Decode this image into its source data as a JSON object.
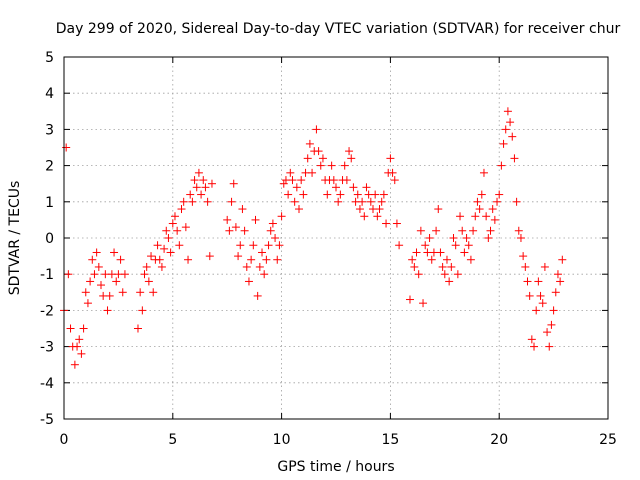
{
  "chart_data": {
    "type": "scatter",
    "title": "Day 299 of 2020, Sidereal Day-to-day VTEC variation (SDTVAR) for receiver chur",
    "xlabel": "GPS time / hours",
    "ylabel": "SDTVAR / TECUs",
    "xlim": [
      0,
      25
    ],
    "ylim": [
      -5,
      5
    ],
    "xticks": [
      0,
      5,
      10,
      15,
      20,
      25
    ],
    "yticks": [
      -5,
      -4,
      -3,
      -2,
      -1,
      0,
      1,
      2,
      3,
      4,
      5
    ],
    "grid": true,
    "marker": "+",
    "color": "#ff0000",
    "series": [
      {
        "name": "SDTVAR",
        "x": [
          0.0,
          0.1,
          0.2,
          0.3,
          0.4,
          0.5,
          0.6,
          0.7,
          0.8,
          0.9,
          1.0,
          1.1,
          1.2,
          1.3,
          1.4,
          1.5,
          1.6,
          1.7,
          1.8,
          1.9,
          2.0,
          2.1,
          2.2,
          2.3,
          2.4,
          2.5,
          2.6,
          2.7,
          2.8,
          3.4,
          3.5,
          3.6,
          3.7,
          3.8,
          3.9,
          4.0,
          4.1,
          4.2,
          4.3,
          4.4,
          4.5,
          4.6,
          4.7,
          4.8,
          4.9,
          5.0,
          5.1,
          5.2,
          5.3,
          5.4,
          5.5,
          5.6,
          5.7,
          5.8,
          5.9,
          6.0,
          6.1,
          6.2,
          6.3,
          6.4,
          6.5,
          6.6,
          6.7,
          6.8,
          7.5,
          7.6,
          7.7,
          7.8,
          7.9,
          8.0,
          8.1,
          8.2,
          8.3,
          8.4,
          8.5,
          8.6,
          8.7,
          8.8,
          8.9,
          9.0,
          9.1,
          9.2,
          9.3,
          9.4,
          9.5,
          9.6,
          9.7,
          9.8,
          9.9,
          10.0,
          10.1,
          10.2,
          10.3,
          10.4,
          10.5,
          10.6,
          10.7,
          10.8,
          10.9,
          11.0,
          11.1,
          11.2,
          11.3,
          11.4,
          11.5,
          11.6,
          11.7,
          11.8,
          11.9,
          12.0,
          12.1,
          12.2,
          12.3,
          12.4,
          12.5,
          12.6,
          12.7,
          12.8,
          12.9,
          13.0,
          13.1,
          13.2,
          13.3,
          13.4,
          13.5,
          13.6,
          13.7,
          13.8,
          13.9,
          14.0,
          14.1,
          14.2,
          14.3,
          14.4,
          14.5,
          14.6,
          14.7,
          14.8,
          14.9,
          15.0,
          15.1,
          15.2,
          15.3,
          15.4,
          15.9,
          16.0,
          16.1,
          16.2,
          16.3,
          16.4,
          16.5,
          16.6,
          16.7,
          16.8,
          16.9,
          17.0,
          17.1,
          17.2,
          17.3,
          17.4,
          17.5,
          17.6,
          17.7,
          17.8,
          17.9,
          18.0,
          18.1,
          18.2,
          18.3,
          18.4,
          18.5,
          18.6,
          18.7,
          18.8,
          18.9,
          19.0,
          19.1,
          19.2,
          19.3,
          19.4,
          19.5,
          19.6,
          19.7,
          19.8,
          19.9,
          20.0,
          20.1,
          20.2,
          20.3,
          20.4,
          20.5,
          20.6,
          20.7,
          20.8,
          20.9,
          21.0,
          21.1,
          21.2,
          21.3,
          21.4,
          21.5,
          21.6,
          21.7,
          21.8,
          21.9,
          22.0,
          22.1,
          22.2,
          22.3,
          22.4,
          22.5,
          22.6,
          22.7,
          22.8,
          22.9
        ],
        "y": [
          -2.0,
          2.5,
          -1.0,
          -2.5,
          -3.0,
          -3.5,
          -3.0,
          -2.8,
          -3.2,
          -2.5,
          -1.5,
          -1.8,
          -1.2,
          -0.6,
          -1.0,
          -0.4,
          -0.8,
          -1.3,
          -1.6,
          -1.0,
          -2.0,
          -1.6,
          -1.0,
          -0.4,
          -1.2,
          -1.0,
          -0.6,
          -1.5,
          -1.0,
          -2.5,
          -1.5,
          -2.0,
          -1.0,
          -0.8,
          -1.2,
          -0.5,
          -1.5,
          -0.6,
          -0.2,
          -0.6,
          -0.8,
          -0.3,
          0.2,
          0.0,
          -0.4,
          0.4,
          0.6,
          0.2,
          -0.2,
          0.8,
          1.0,
          0.3,
          -0.6,
          1.2,
          1.0,
          1.6,
          1.4,
          1.8,
          1.2,
          1.6,
          1.4,
          1.0,
          -0.5,
          1.5,
          0.5,
          0.2,
          1.0,
          1.5,
          0.3,
          -0.5,
          -0.2,
          0.8,
          0.2,
          -0.8,
          -1.2,
          -0.6,
          -0.2,
          0.5,
          -1.6,
          -0.8,
          -0.4,
          -1.0,
          -0.6,
          -0.2,
          0.2,
          0.4,
          0.0,
          -0.6,
          -0.2,
          0.6,
          1.5,
          1.6,
          1.2,
          1.8,
          1.6,
          1.0,
          1.4,
          0.8,
          1.6,
          1.2,
          1.8,
          2.2,
          2.6,
          1.8,
          2.4,
          3.0,
          2.4,
          2.0,
          2.2,
          1.6,
          1.2,
          1.6,
          2.0,
          1.6,
          1.4,
          1.0,
          1.2,
          1.6,
          2.0,
          1.6,
          2.4,
          2.2,
          1.4,
          1.0,
          1.2,
          0.8,
          1.0,
          0.6,
          1.4,
          1.2,
          1.0,
          0.8,
          1.2,
          0.6,
          0.8,
          1.0,
          1.2,
          0.4,
          1.8,
          2.2,
          1.8,
          1.6,
          0.4,
          -0.2,
          -1.7,
          -0.6,
          -0.8,
          -0.4,
          -1.0,
          0.2,
          -1.8,
          -0.2,
          -0.4,
          0.0,
          -0.6,
          -0.4,
          0.2,
          0.8,
          -0.4,
          -0.8,
          -1.0,
          -0.6,
          -1.2,
          -0.8,
          0.0,
          -0.2,
          -1.0,
          0.6,
          0.2,
          -0.4,
          0.0,
          -0.2,
          -0.6,
          0.2,
          0.6,
          1.0,
          0.8,
          1.2,
          1.8,
          0.6,
          0.0,
          0.2,
          0.8,
          0.5,
          1.0,
          1.2,
          2.0,
          2.6,
          3.0,
          3.5,
          3.2,
          2.8,
          2.2,
          1.0,
          0.2,
          0.0,
          -0.5,
          -0.8,
          -1.2,
          -1.6,
          -2.8,
          -3.0,
          -2.0,
          -1.2,
          -1.6,
          -1.8,
          -0.8,
          -2.6,
          -3.0,
          -2.4,
          -2.0,
          -1.5,
          -1.0,
          -1.2,
          -0.6
        ]
      }
    ]
  }
}
